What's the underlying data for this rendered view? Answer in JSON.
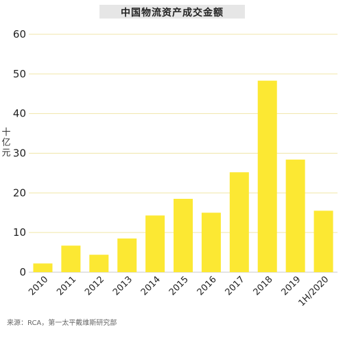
{
  "chart_data": {
    "type": "bar",
    "title": "中国物流资产成交金额",
    "ylabel": "十亿元",
    "xlabel": "",
    "categories": [
      "2010",
      "2011",
      "2012",
      "2013",
      "2014",
      "2015",
      "2016",
      "2017",
      "2018",
      "2019",
      "1H/2020"
    ],
    "values": [
      2.2,
      6.7,
      4.4,
      8.5,
      14.3,
      18.5,
      15.0,
      25.2,
      48.3,
      28.4,
      15.5
    ],
    "ylim": [
      0,
      60
    ],
    "yticks": [
      0,
      10,
      20,
      30,
      40,
      50,
      60
    ],
    "grid": true,
    "legend": "none",
    "bar_color": "#fce833"
  },
  "source": "来源：RCA，第一太平戴维斯研究部"
}
